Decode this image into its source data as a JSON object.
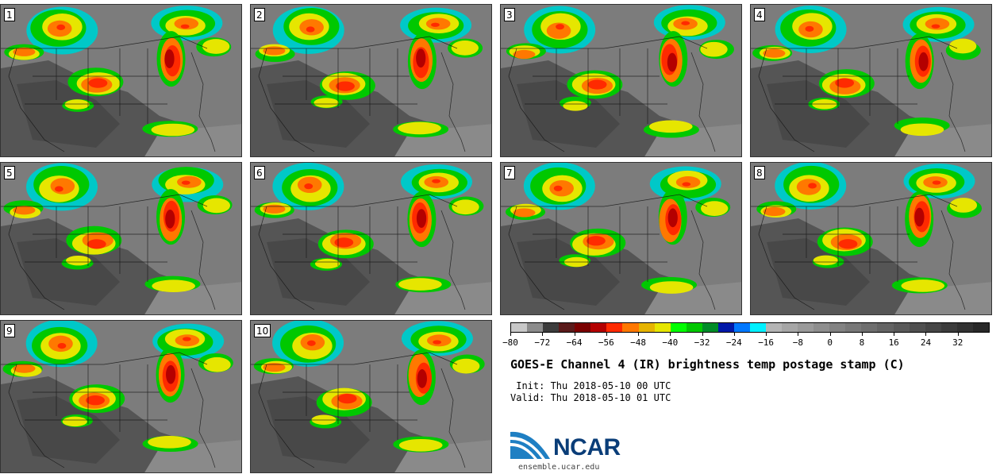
{
  "panels": [
    {
      "label": "1"
    },
    {
      "label": "2"
    },
    {
      "label": "3"
    },
    {
      "label": "4"
    },
    {
      "label": "5"
    },
    {
      "label": "6"
    },
    {
      "label": "7"
    },
    {
      "label": "8"
    },
    {
      "label": "9"
    },
    {
      "label": "10"
    }
  ],
  "colorbar": {
    "colors": [
      "#c8c8c8",
      "#8c8c8c",
      "#3c3c3c",
      "#5a1a1a",
      "#7a0000",
      "#b40000",
      "#ff2a00",
      "#ff7800",
      "#e6b400",
      "#e6e600",
      "#00ff00",
      "#00c800",
      "#008c28",
      "#0018a8",
      "#0078ff",
      "#00f0ff",
      "#b4b4b4",
      "#a6a6a6",
      "#9a9a9a",
      "#8e8e8e",
      "#828282",
      "#787878",
      "#6e6e6e",
      "#646464",
      "#5a5a5a",
      "#505050",
      "#464646",
      "#3c3c3c",
      "#323232",
      "#282828"
    ],
    "tick_values": [
      -80,
      -72,
      -64,
      -56,
      -48,
      -40,
      -32,
      -24,
      -16,
      -8,
      0,
      8,
      16,
      24,
      32
    ],
    "tick_labels": [
      "−80",
      "−72",
      "−64",
      "−56",
      "−48",
      "−40",
      "−32",
      "−24",
      "−16",
      "−8",
      "0",
      "8",
      "16",
      "24",
      "32"
    ],
    "range": [
      -80,
      40
    ]
  },
  "title": "GOES-E Channel 4 (IR) brightness temp postage stamp (C)",
  "init_line": " Init: Thu 2018-05-10 00 UTC",
  "valid_line": "Valid: Thu 2018-05-10 01 UTC",
  "logo": {
    "text": "NCAR",
    "url": "ensemble.ucar.edu"
  }
}
